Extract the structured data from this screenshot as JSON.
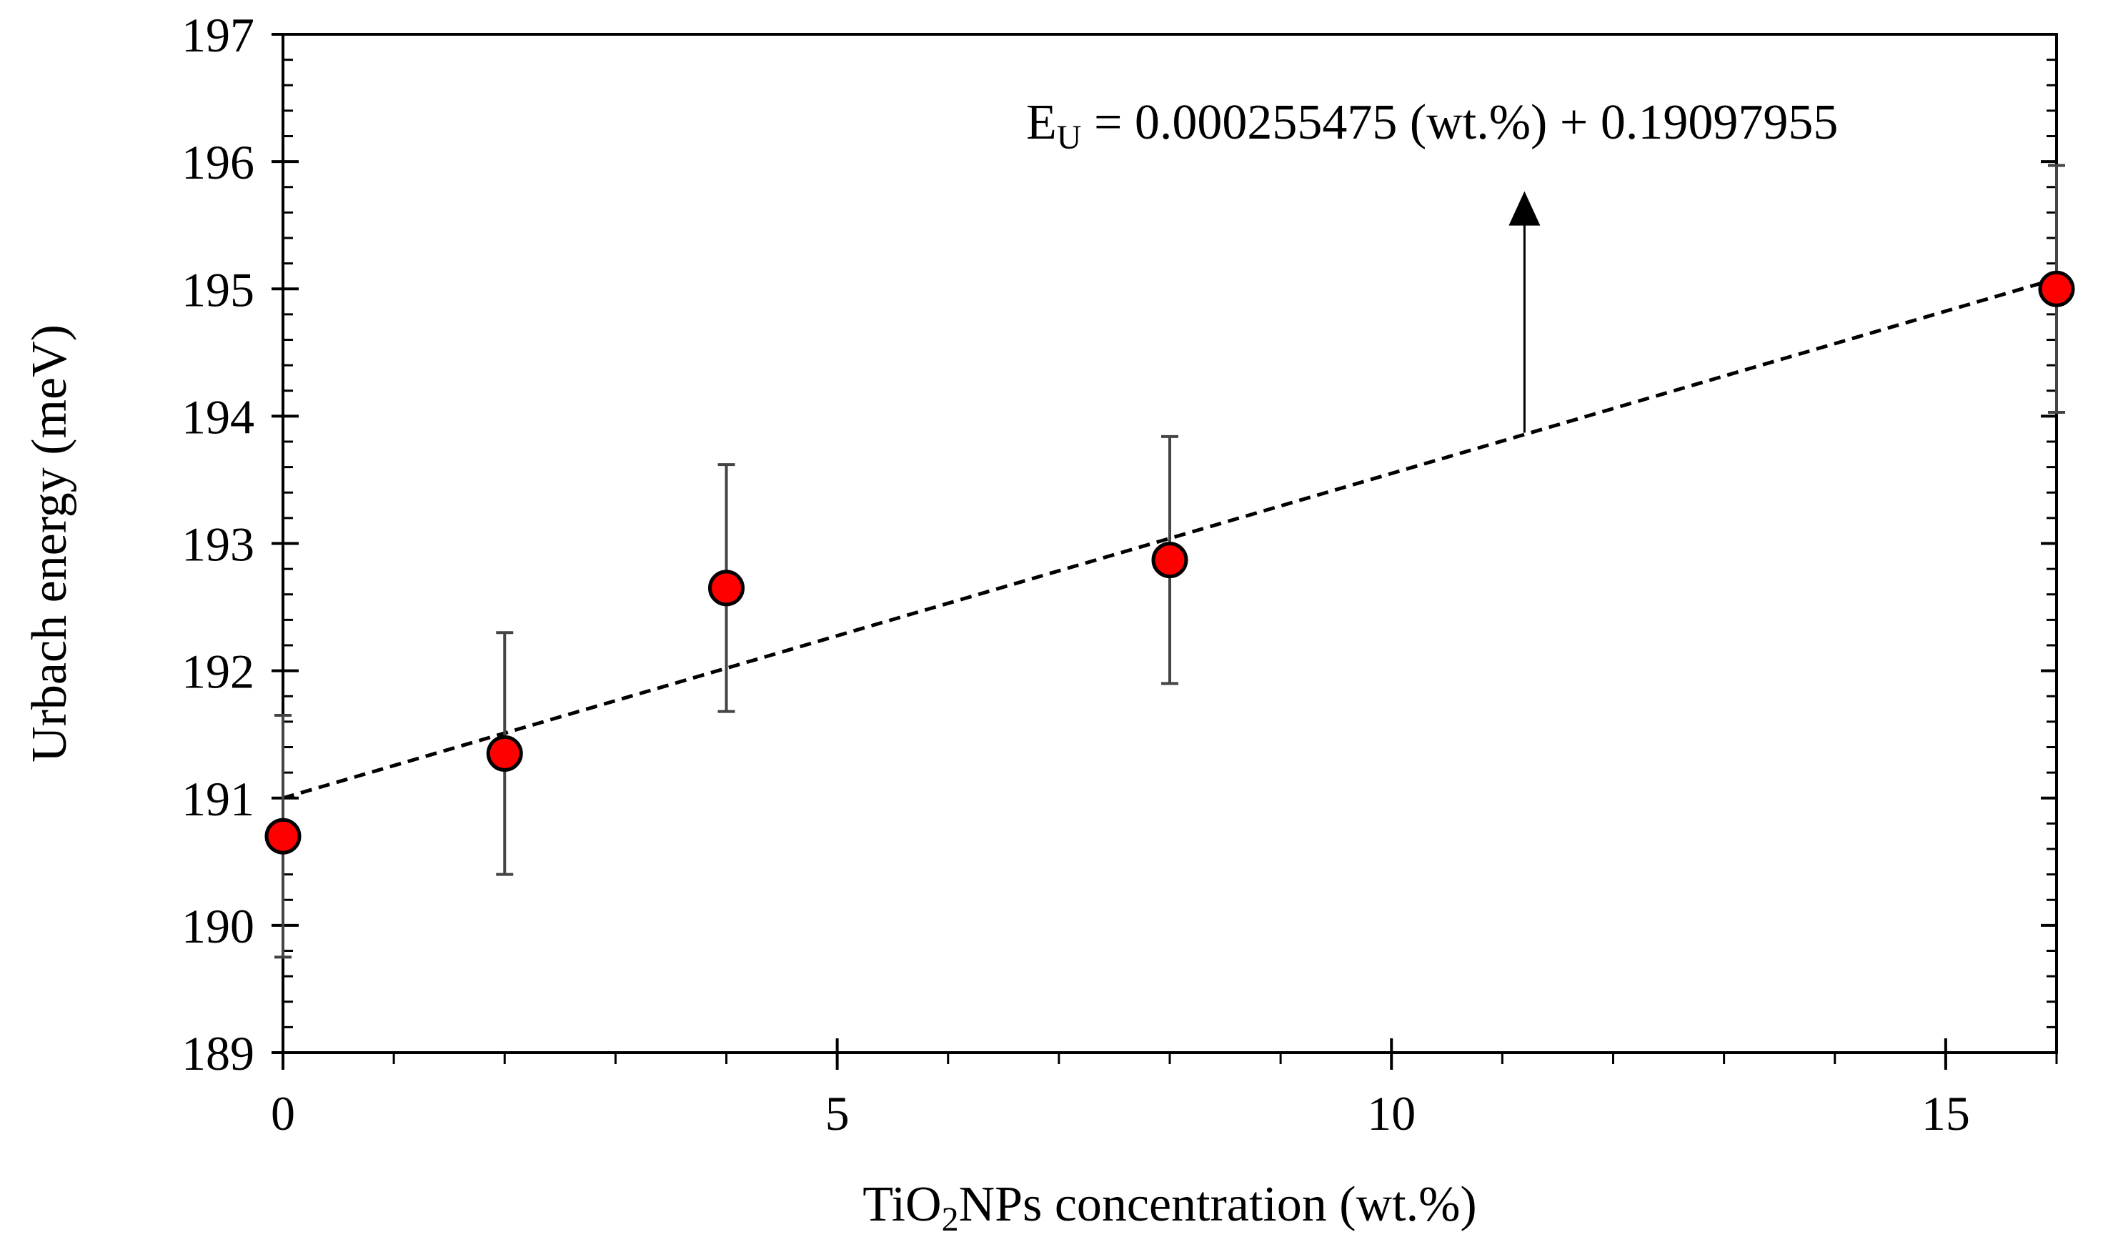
{
  "chart_data": {
    "type": "scatter",
    "title": "",
    "xlabel": {
      "prefix": "TiO",
      "subscript": "2",
      "suffix": "NPs concentration (wt.%)"
    },
    "ylabel": "Urbach energy (meV)",
    "xlim": [
      0,
      16
    ],
    "ylim": [
      189,
      197
    ],
    "x_ticks": [
      0,
      5,
      10,
      15
    ],
    "x_tick_labels": [
      "0",
      "5",
      "10",
      "15"
    ],
    "x_minor_step": 1,
    "y_ticks": [
      189,
      190,
      191,
      192,
      193,
      194,
      195,
      196,
      197
    ],
    "y_tick_labels": [
      "189",
      "190",
      "191",
      "192",
      "193",
      "194",
      "195",
      "196",
      "197"
    ],
    "y_minor_step": 0.2,
    "grid": false,
    "legend": "none",
    "series": [
      {
        "name": "Urbach energy",
        "marker": "circle",
        "color": "#ff0000",
        "edge_color": "#000000",
        "x": [
          0,
          2,
          4,
          8,
          16
        ],
        "y": [
          190.7,
          191.35,
          192.65,
          192.87,
          195.0
        ],
        "error": [
          0.95,
          0.95,
          0.97,
          0.97,
          0.97
        ]
      }
    ],
    "trendline": {
      "style": "dashed",
      "color": "#000000",
      "x": [
        0,
        16
      ],
      "y": [
        191.0,
        195.08
      ]
    },
    "annotation": {
      "text_prefix": "E",
      "text_subscript": "U",
      "text_suffix": " = 0.000255475 (wt.%) + 0.19097955",
      "arrow_from": [
        11.2,
        193.87
      ],
      "arrow_to": [
        11.2,
        195.7
      ]
    }
  }
}
